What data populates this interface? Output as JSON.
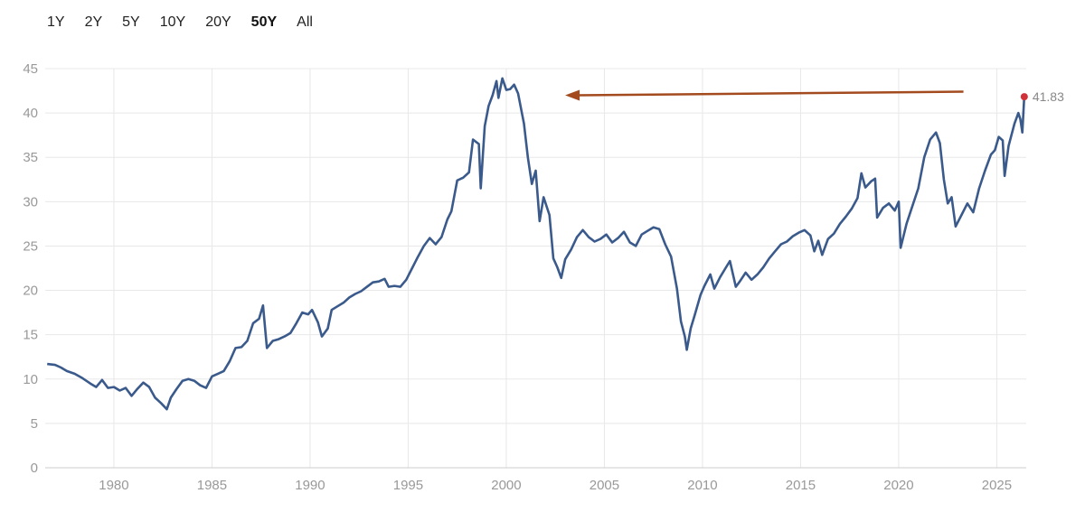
{
  "range_selector": {
    "buttons": [
      "1Y",
      "2Y",
      "5Y",
      "10Y",
      "20Y",
      "50Y",
      "All"
    ],
    "active": "50Y"
  },
  "colors": {
    "line": "#3b5a8c",
    "last_point": "#d0323a",
    "arrow": "#a34a1e",
    "grid": "#e8e8e8"
  },
  "chart_data": {
    "type": "line",
    "title": "",
    "xlabel": "",
    "ylabel": "",
    "xlim": [
      1976.5,
      2026.5
    ],
    "ylim": [
      0,
      45
    ],
    "grid": true,
    "x_ticks": [
      1980,
      1985,
      1990,
      1995,
      2000,
      2005,
      2010,
      2015,
      2020,
      2025
    ],
    "y_ticks": [
      0,
      5,
      10,
      15,
      20,
      25,
      30,
      35,
      40,
      45
    ],
    "last_value": 41.83,
    "last_value_label": "41.83",
    "annotation": {
      "type": "arrow",
      "from": [
        2023.3,
        42.4
      ],
      "to": [
        2003.0,
        42.0
      ]
    },
    "series": [
      {
        "points": [
          [
            1976.6,
            11.7
          ],
          [
            1977.0,
            11.6
          ],
          [
            1977.3,
            11.3
          ],
          [
            1977.6,
            10.9
          ],
          [
            1978.0,
            10.6
          ],
          [
            1978.4,
            10.1
          ],
          [
            1978.8,
            9.5
          ],
          [
            1979.1,
            9.1
          ],
          [
            1979.4,
            9.9
          ],
          [
            1979.7,
            9.0
          ],
          [
            1980.0,
            9.1
          ],
          [
            1980.3,
            8.7
          ],
          [
            1980.6,
            9.0
          ],
          [
            1980.9,
            8.1
          ],
          [
            1981.2,
            8.9
          ],
          [
            1981.5,
            9.6
          ],
          [
            1981.8,
            9.1
          ],
          [
            1982.1,
            7.9
          ],
          [
            1982.4,
            7.3
          ],
          [
            1982.7,
            6.6
          ],
          [
            1982.9,
            7.9
          ],
          [
            1983.2,
            8.9
          ],
          [
            1983.5,
            9.8
          ],
          [
            1983.8,
            10.0
          ],
          [
            1984.1,
            9.8
          ],
          [
            1984.4,
            9.3
          ],
          [
            1984.7,
            9.0
          ],
          [
            1985.0,
            10.3
          ],
          [
            1985.3,
            10.6
          ],
          [
            1985.6,
            10.9
          ],
          [
            1985.9,
            12.0
          ],
          [
            1986.2,
            13.5
          ],
          [
            1986.5,
            13.6
          ],
          [
            1986.8,
            14.3
          ],
          [
            1987.1,
            16.3
          ],
          [
            1987.4,
            16.8
          ],
          [
            1987.6,
            18.3
          ],
          [
            1987.8,
            13.5
          ],
          [
            1988.1,
            14.3
          ],
          [
            1988.4,
            14.5
          ],
          [
            1988.7,
            14.8
          ],
          [
            1989.0,
            15.2
          ],
          [
            1989.3,
            16.3
          ],
          [
            1989.6,
            17.5
          ],
          [
            1989.9,
            17.3
          ],
          [
            1990.1,
            17.8
          ],
          [
            1990.4,
            16.4
          ],
          [
            1990.6,
            14.8
          ],
          [
            1990.9,
            15.7
          ],
          [
            1991.1,
            17.8
          ],
          [
            1991.4,
            18.2
          ],
          [
            1991.7,
            18.6
          ],
          [
            1992.0,
            19.2
          ],
          [
            1992.3,
            19.6
          ],
          [
            1992.6,
            19.9
          ],
          [
            1992.9,
            20.4
          ],
          [
            1993.2,
            20.9
          ],
          [
            1993.5,
            21.0
          ],
          [
            1993.8,
            21.3
          ],
          [
            1994.0,
            20.4
          ],
          [
            1994.3,
            20.5
          ],
          [
            1994.6,
            20.4
          ],
          [
            1994.9,
            21.2
          ],
          [
            1995.2,
            22.5
          ],
          [
            1995.5,
            23.8
          ],
          [
            1995.8,
            25.0
          ],
          [
            1996.1,
            25.9
          ],
          [
            1996.4,
            25.2
          ],
          [
            1996.7,
            26.0
          ],
          [
            1997.0,
            28.0
          ],
          [
            1997.2,
            28.9
          ],
          [
            1997.5,
            32.4
          ],
          [
            1997.8,
            32.7
          ],
          [
            1998.1,
            33.3
          ],
          [
            1998.3,
            37.0
          ],
          [
            1998.6,
            36.5
          ],
          [
            1998.7,
            31.5
          ],
          [
            1998.9,
            38.5
          ],
          [
            1999.1,
            40.8
          ],
          [
            1999.3,
            42.0
          ],
          [
            1999.5,
            43.6
          ],
          [
            1999.6,
            41.7
          ],
          [
            1999.8,
            43.9
          ],
          [
            2000.0,
            42.6
          ],
          [
            2000.2,
            42.7
          ],
          [
            2000.4,
            43.2
          ],
          [
            2000.6,
            42.2
          ],
          [
            2000.9,
            38.8
          ],
          [
            2001.1,
            35.0
          ],
          [
            2001.3,
            32.0
          ],
          [
            2001.5,
            33.5
          ],
          [
            2001.7,
            27.8
          ],
          [
            2001.9,
            30.5
          ],
          [
            2002.2,
            28.5
          ],
          [
            2002.4,
            23.6
          ],
          [
            2002.6,
            22.6
          ],
          [
            2002.8,
            21.4
          ],
          [
            2003.0,
            23.5
          ],
          [
            2003.3,
            24.6
          ],
          [
            2003.6,
            26.0
          ],
          [
            2003.9,
            26.8
          ],
          [
            2004.2,
            26.0
          ],
          [
            2004.5,
            25.5
          ],
          [
            2004.8,
            25.8
          ],
          [
            2005.1,
            26.3
          ],
          [
            2005.4,
            25.4
          ],
          [
            2005.7,
            25.9
          ],
          [
            2006.0,
            26.6
          ],
          [
            2006.3,
            25.4
          ],
          [
            2006.6,
            25.0
          ],
          [
            2006.9,
            26.3
          ],
          [
            2007.2,
            26.7
          ],
          [
            2007.5,
            27.1
          ],
          [
            2007.8,
            26.9
          ],
          [
            2008.1,
            25.2
          ],
          [
            2008.4,
            23.8
          ],
          [
            2008.7,
            20.2
          ],
          [
            2008.9,
            16.5
          ],
          [
            2009.1,
            14.8
          ],
          [
            2009.2,
            13.3
          ],
          [
            2009.4,
            15.7
          ],
          [
            2009.6,
            17.2
          ],
          [
            2009.9,
            19.5
          ],
          [
            2010.1,
            20.5
          ],
          [
            2010.4,
            21.8
          ],
          [
            2010.6,
            20.2
          ],
          [
            2010.9,
            21.5
          ],
          [
            2011.2,
            22.6
          ],
          [
            2011.4,
            23.3
          ],
          [
            2011.7,
            20.4
          ],
          [
            2011.9,
            21.0
          ],
          [
            2012.2,
            22.0
          ],
          [
            2012.5,
            21.2
          ],
          [
            2012.8,
            21.8
          ],
          [
            2013.1,
            22.6
          ],
          [
            2013.4,
            23.6
          ],
          [
            2013.7,
            24.4
          ],
          [
            2014.0,
            25.2
          ],
          [
            2014.3,
            25.5
          ],
          [
            2014.6,
            26.1
          ],
          [
            2014.9,
            26.5
          ],
          [
            2015.2,
            26.8
          ],
          [
            2015.5,
            26.2
          ],
          [
            2015.7,
            24.4
          ],
          [
            2015.9,
            25.6
          ],
          [
            2016.1,
            24.0
          ],
          [
            2016.4,
            25.8
          ],
          [
            2016.7,
            26.4
          ],
          [
            2017.0,
            27.5
          ],
          [
            2017.3,
            28.3
          ],
          [
            2017.6,
            29.2
          ],
          [
            2017.9,
            30.4
          ],
          [
            2018.1,
            33.2
          ],
          [
            2018.3,
            31.6
          ],
          [
            2018.6,
            32.3
          ],
          [
            2018.8,
            32.6
          ],
          [
            2018.9,
            28.2
          ],
          [
            2019.2,
            29.3
          ],
          [
            2019.5,
            29.8
          ],
          [
            2019.8,
            29.0
          ],
          [
            2020.0,
            30.0
          ],
          [
            2020.1,
            24.8
          ],
          [
            2020.4,
            27.5
          ],
          [
            2020.7,
            29.5
          ],
          [
            2021.0,
            31.5
          ],
          [
            2021.3,
            35.0
          ],
          [
            2021.6,
            37.0
          ],
          [
            2021.9,
            37.8
          ],
          [
            2022.1,
            36.6
          ],
          [
            2022.3,
            32.5
          ],
          [
            2022.5,
            29.8
          ],
          [
            2022.7,
            30.5
          ],
          [
            2022.9,
            27.2
          ],
          [
            2023.2,
            28.5
          ],
          [
            2023.5,
            29.8
          ],
          [
            2023.8,
            28.8
          ],
          [
            2024.1,
            31.5
          ],
          [
            2024.4,
            33.5
          ],
          [
            2024.7,
            35.3
          ],
          [
            2024.9,
            35.8
          ],
          [
            2025.1,
            37.3
          ],
          [
            2025.3,
            36.9
          ],
          [
            2025.4,
            32.9
          ],
          [
            2025.6,
            36.3
          ],
          [
            2025.9,
            38.8
          ],
          [
            2026.1,
            40.0
          ],
          [
            2026.2,
            39.3
          ],
          [
            2026.3,
            37.8
          ],
          [
            2026.4,
            41.83
          ]
        ]
      }
    ]
  }
}
